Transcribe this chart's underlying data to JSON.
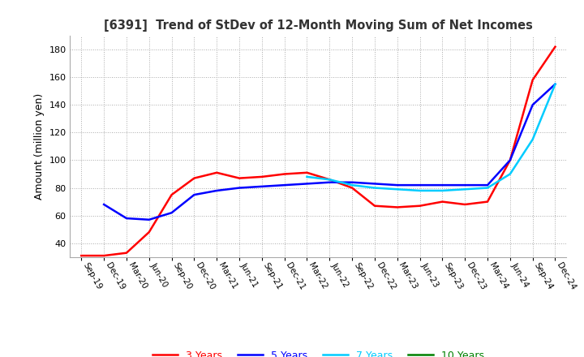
{
  "title": "[6391]  Trend of StDev of 12-Month Moving Sum of Net Incomes",
  "ylabel": "Amount (million yen)",
  "ylim": [
    30,
    190
  ],
  "yticks": [
    40,
    60,
    80,
    100,
    120,
    140,
    160,
    180
  ],
  "line_colors": {
    "3y": "#ff0000",
    "5y": "#0000ff",
    "7y": "#00ccff",
    "10y": "#008000"
  },
  "line_labels": [
    "3 Years",
    "5 Years",
    "7 Years",
    "10 Years"
  ],
  "x_labels": [
    "Sep-19",
    "Dec-19",
    "Mar-20",
    "Jun-20",
    "Sep-20",
    "Dec-20",
    "Mar-21",
    "Jun-21",
    "Sep-21",
    "Dec-21",
    "Mar-22",
    "Jun-22",
    "Sep-22",
    "Dec-22",
    "Mar-23",
    "Jun-23",
    "Sep-23",
    "Dec-23",
    "Mar-24",
    "Jun-24",
    "Sep-24",
    "Dec-24"
  ],
  "data_3y": [
    31,
    31,
    33,
    48,
    75,
    87,
    91,
    87,
    88,
    90,
    91,
    86,
    80,
    67,
    66,
    67,
    70,
    68,
    70,
    100,
    158,
    182
  ],
  "data_5y": [
    null,
    68,
    58,
    57,
    62,
    75,
    78,
    80,
    81,
    82,
    83,
    84,
    84,
    83,
    82,
    82,
    82,
    82,
    82,
    100,
    140,
    155
  ],
  "data_7y": [
    null,
    null,
    null,
    null,
    null,
    null,
    null,
    null,
    null,
    null,
    88,
    86,
    82,
    80,
    79,
    78,
    78,
    79,
    80,
    90,
    115,
    155
  ],
  "data_10y": [
    null,
    null,
    null,
    null,
    null,
    null,
    null,
    null,
    null,
    null,
    null,
    null,
    null,
    null,
    null,
    null,
    null,
    null,
    null,
    null,
    null,
    null
  ],
  "background_color": "#ffffff",
  "grid_color": "#aaaaaa"
}
